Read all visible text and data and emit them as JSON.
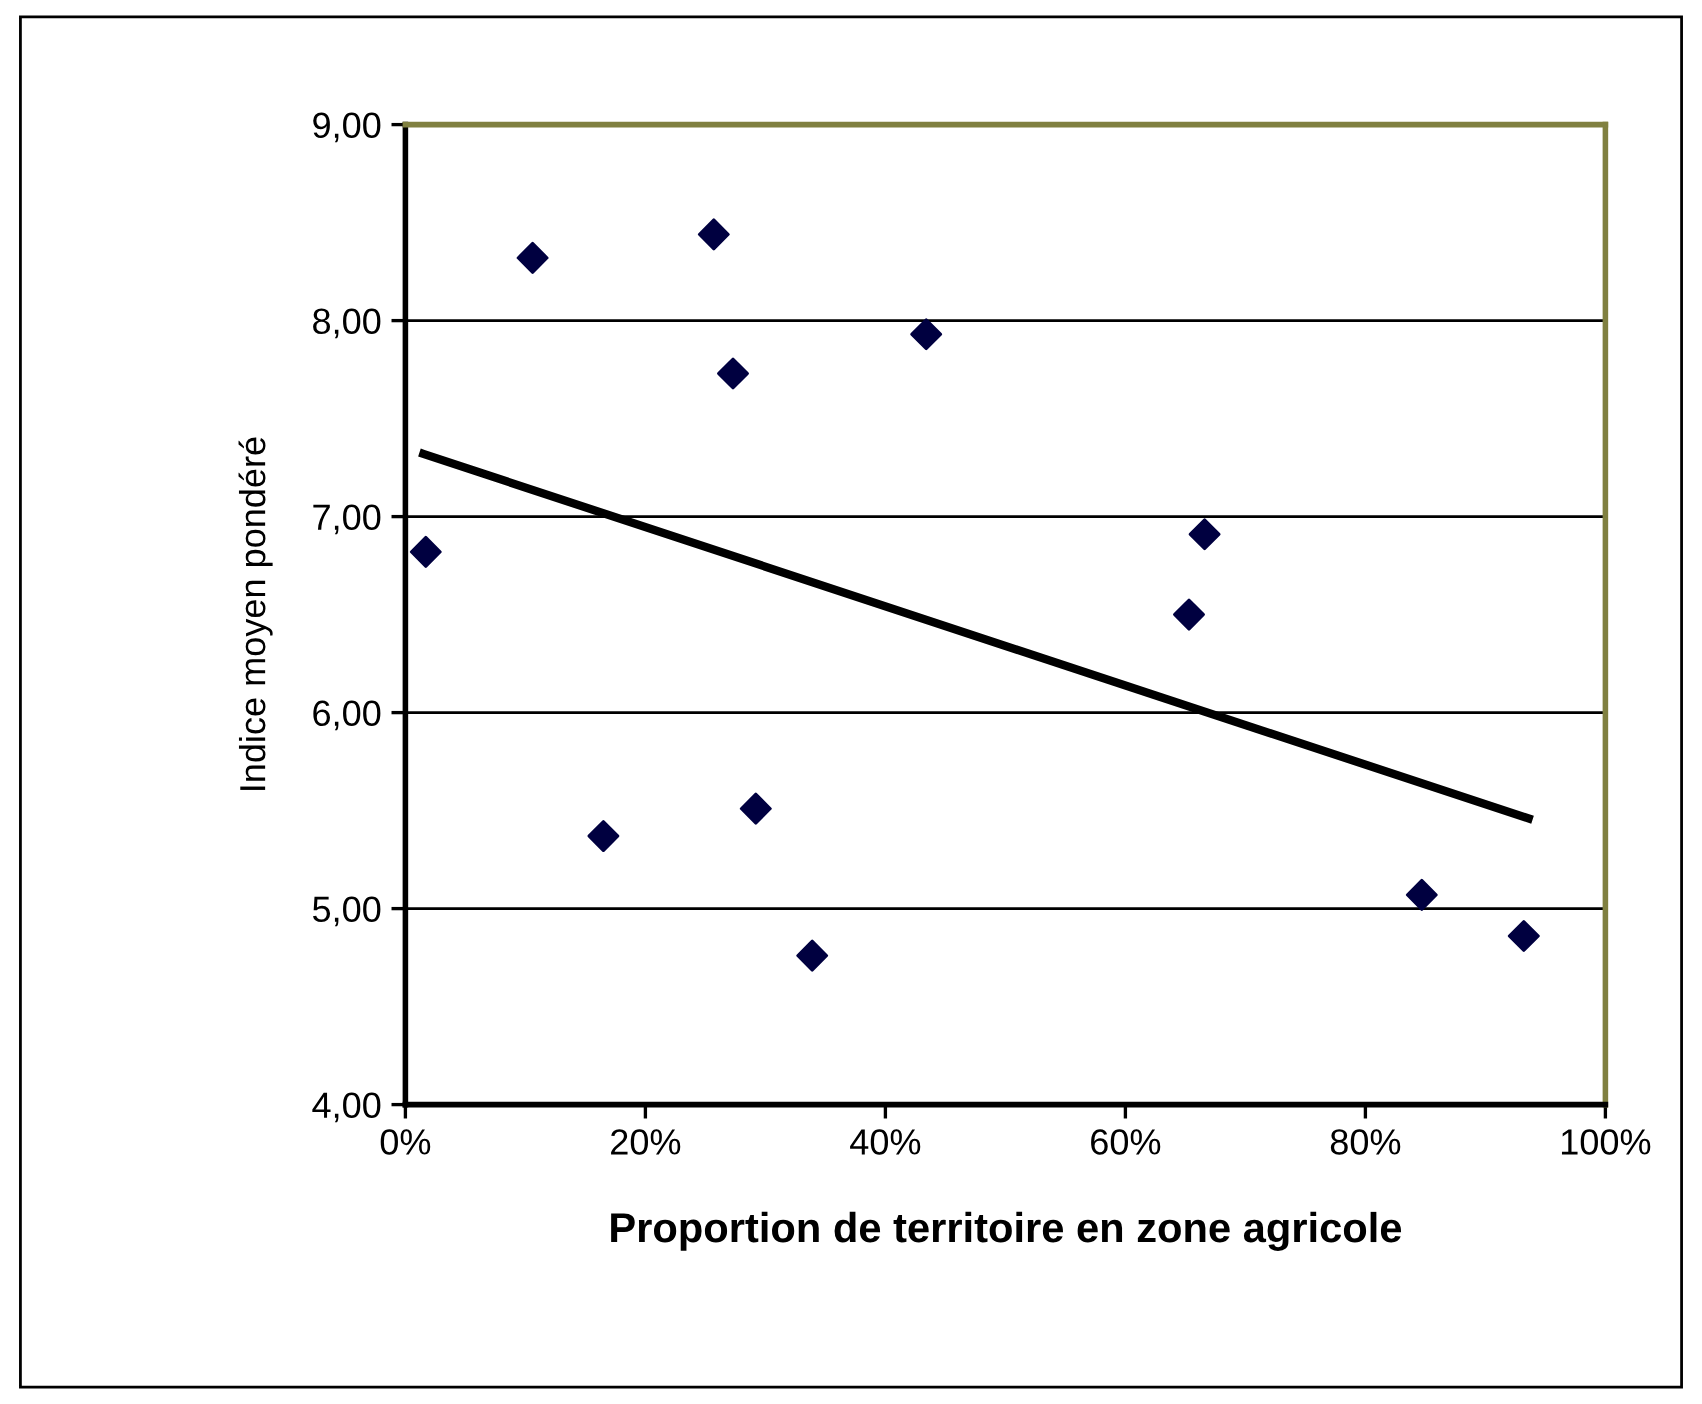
{
  "chart_data": {
    "type": "scatter",
    "xlabel": "Proportion de territoire en zone agricole",
    "ylabel": "Indice moyen pondéré",
    "xlim": [
      0,
      100
    ],
    "xticks": [
      {
        "value": 0,
        "label": "0%"
      },
      {
        "value": 20,
        "label": "20%"
      },
      {
        "value": 40,
        "label": "40%"
      },
      {
        "value": 60,
        "label": "60%"
      },
      {
        "value": 80,
        "label": "80%"
      },
      {
        "value": 100,
        "label": "100%"
      }
    ],
    "ylim": [
      4,
      9
    ],
    "yticks": [
      {
        "value": 4,
        "label": "4,00"
      },
      {
        "value": 5,
        "label": "5,00"
      },
      {
        "value": 6,
        "label": "6,00"
      },
      {
        "value": 7,
        "label": "7,00"
      },
      {
        "value": 8,
        "label": "8,00"
      },
      {
        "value": 9,
        "label": "9,00"
      }
    ],
    "grid": "y",
    "legend": false,
    "series": [
      {
        "marker": "diamond",
        "color": "#000040",
        "x": [
          1.7,
          10.6,
          25.7,
          27.3,
          43.4,
          16.5,
          29.2,
          33.9,
          66.6,
          65.3,
          84.7,
          93.2
        ],
        "values": [
          6.82,
          8.32,
          8.44,
          7.73,
          7.93,
          5.37,
          5.51,
          4.76,
          6.91,
          6.5,
          5.07,
          4.86
        ]
      },
      {
        "type": "line",
        "marker": "none",
        "color": "#000000",
        "x": [
          1.5,
          93.6
        ],
        "values": [
          7.32,
          5.46
        ]
      }
    ]
  }
}
